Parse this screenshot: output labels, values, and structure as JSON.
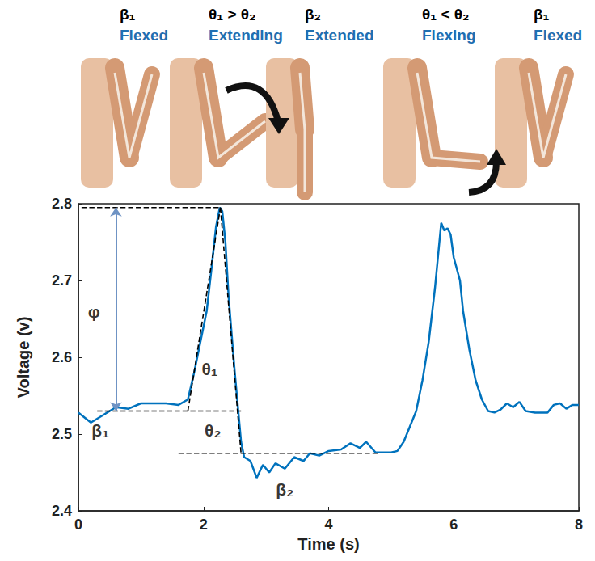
{
  "stages": [
    {
      "heading": "β₁",
      "state": "Flexed"
    },
    {
      "heading": "θ₁ > θ₂",
      "state": "Extending"
    },
    {
      "heading": "β₂",
      "state": "Extended"
    },
    {
      "heading": "θ₁ < θ₂",
      "state": "Flexing"
    },
    {
      "heading": "β₁",
      "state": "Flexed"
    }
  ],
  "chart_data": {
    "type": "line",
    "x_label": "Time (s)",
    "y_label": "Voltage (v)",
    "color": "#0072bd",
    "x": [
      0,
      0.2,
      0.4,
      0.6,
      0.8,
      1.0,
      1.2,
      1.4,
      1.6,
      1.75,
      1.85,
      1.95,
      2.05,
      2.12,
      2.2,
      2.26,
      2.3,
      2.35,
      2.4,
      2.5,
      2.6,
      2.65,
      2.75,
      2.85,
      2.95,
      3.05,
      3.15,
      3.3,
      3.45,
      3.6,
      3.7,
      3.85,
      4.0,
      4.2,
      4.35,
      4.5,
      4.6,
      4.75,
      4.9,
      5.0,
      5.1,
      5.2,
      5.3,
      5.4,
      5.5,
      5.6,
      5.7,
      5.8,
      5.85,
      5.9,
      5.95,
      6.0,
      6.1,
      6.15,
      6.25,
      6.35,
      6.45,
      6.55,
      6.65,
      6.75,
      6.85,
      6.95,
      7.05,
      7.15,
      7.3,
      7.5,
      7.6,
      7.7,
      7.8,
      7.9,
      8.0
    ],
    "values": [
      2.528,
      2.515,
      2.525,
      2.535,
      2.533,
      2.54,
      2.54,
      2.54,
      2.538,
      2.545,
      2.58,
      2.62,
      2.66,
      2.71,
      2.77,
      2.795,
      2.79,
      2.75,
      2.68,
      2.58,
      2.49,
      2.47,
      2.465,
      2.443,
      2.46,
      2.45,
      2.462,
      2.455,
      2.47,
      2.465,
      2.475,
      2.472,
      2.478,
      2.48,
      2.488,
      2.482,
      2.49,
      2.476,
      2.476,
      2.476,
      2.478,
      2.49,
      2.51,
      2.53,
      2.57,
      2.62,
      2.69,
      2.775,
      2.765,
      2.768,
      2.76,
      2.73,
      2.7,
      2.66,
      2.61,
      2.57,
      2.545,
      2.53,
      2.528,
      2.532,
      2.54,
      2.535,
      2.542,
      2.53,
      2.528,
      2.528,
      2.538,
      2.54,
      2.533,
      2.538,
      2.538
    ],
    "xlim": [
      0,
      8
    ],
    "ylim": [
      2.4,
      2.8
    ],
    "xticks": [
      0,
      2,
      4,
      6,
      8
    ],
    "yticks": [
      2.4,
      2.5,
      2.6,
      2.7,
      2.8
    ],
    "grid": false,
    "annotations": {
      "guides": [
        [
          [
            0.05,
            2.795
          ],
          [
            2.27,
            2.795
          ]
        ],
        [
          [
            0.3,
            2.53
          ],
          [
            2.6,
            2.53
          ]
        ],
        [
          [
            1.6,
            2.475
          ],
          [
            4.8,
            2.475
          ]
        ],
        [
          [
            1.75,
            2.53
          ],
          [
            2.27,
            2.795
          ]
        ],
        [
          [
            2.27,
            2.795
          ],
          [
            2.6,
            2.475
          ]
        ]
      ],
      "amplitude": {
        "x": 0.6,
        "from": 2.53,
        "to": 2.795
      },
      "labels": [
        {
          "text": "φ",
          "x": 0.25,
          "y": 2.66
        },
        {
          "text": "θ₁",
          "x": 2.1,
          "y": 2.585
        },
        {
          "text": "θ₂",
          "x": 2.15,
          "y": 2.505
        },
        {
          "text": "β₁",
          "x": 0.35,
          "y": 2.505
        },
        {
          "text": "β₂",
          "x": 3.3,
          "y": 2.428
        }
      ]
    }
  }
}
